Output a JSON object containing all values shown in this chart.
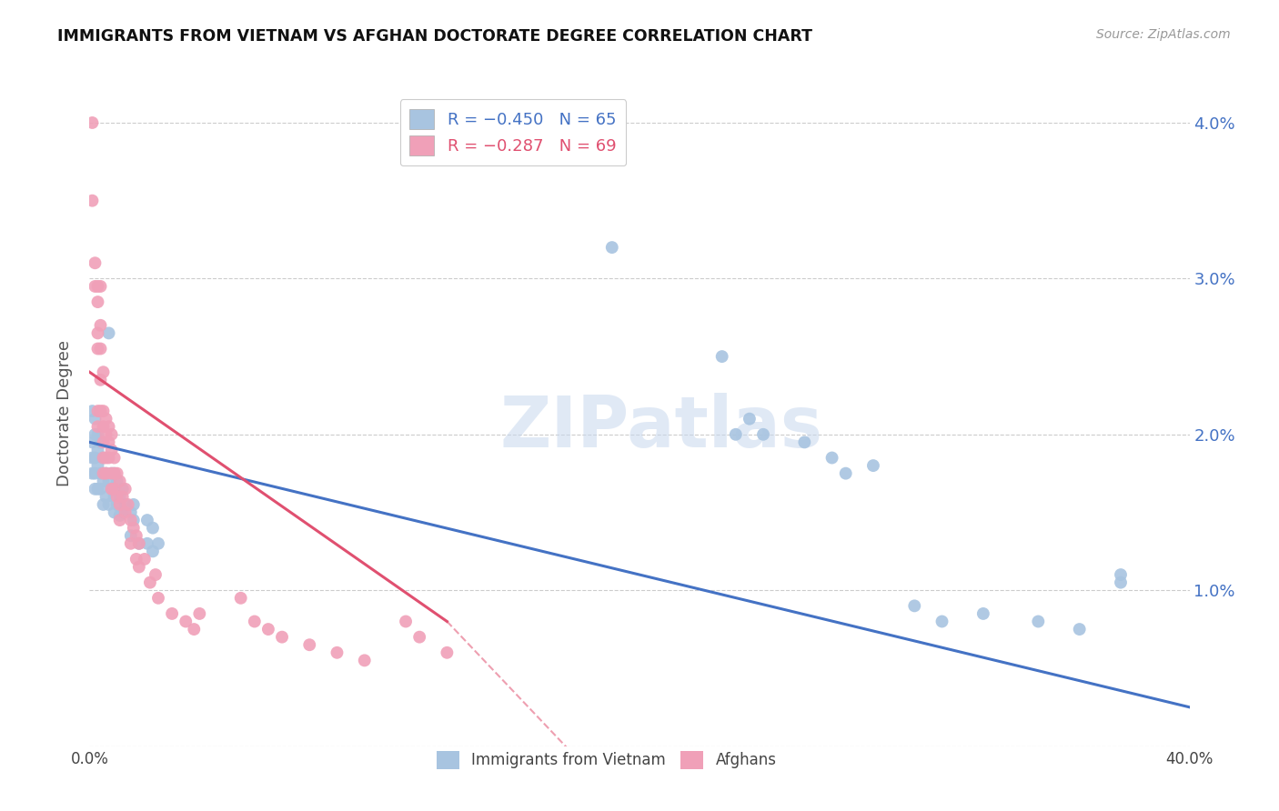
{
  "title": "IMMIGRANTS FROM VIETNAM VS AFGHAN DOCTORATE DEGREE CORRELATION CHART",
  "source": "Source: ZipAtlas.com",
  "ylabel": "Doctorate Degree",
  "xlim": [
    0.0,
    0.4
  ],
  "ylim": [
    0.0,
    0.04267
  ],
  "vietnam_color": "#a8c4e0",
  "afghan_color": "#f0a0b8",
  "trendline_vietnam_color": "#4472c4",
  "trendline_afghan_color": "#e05070",
  "watermark_text": "ZIPatlas",
  "background_color": "#ffffff",
  "grid_color": "#cccccc",
  "vietnam_trendline": [
    0.0,
    0.4,
    0.0195,
    0.0025
  ],
  "afghan_trendline_solid": [
    0.0,
    0.13,
    0.024,
    0.008
  ],
  "afghan_trendline_dash": [
    0.13,
    0.2,
    0.008,
    -0.005
  ],
  "vietnam_points": [
    [
      0.001,
      0.0215
    ],
    [
      0.001,
      0.0195
    ],
    [
      0.001,
      0.0185
    ],
    [
      0.001,
      0.0175
    ],
    [
      0.002,
      0.021
    ],
    [
      0.002,
      0.02
    ],
    [
      0.002,
      0.0185
    ],
    [
      0.002,
      0.0175
    ],
    [
      0.002,
      0.0165
    ],
    [
      0.003,
      0.02
    ],
    [
      0.003,
      0.019
    ],
    [
      0.003,
      0.018
    ],
    [
      0.003,
      0.0165
    ],
    [
      0.004,
      0.0195
    ],
    [
      0.004,
      0.0175
    ],
    [
      0.004,
      0.0165
    ],
    [
      0.005,
      0.0185
    ],
    [
      0.005,
      0.017
    ],
    [
      0.005,
      0.0155
    ],
    [
      0.006,
      0.0175
    ],
    [
      0.006,
      0.016
    ],
    [
      0.007,
      0.0265
    ],
    [
      0.007,
      0.017
    ],
    [
      0.007,
      0.0155
    ],
    [
      0.008,
      0.0175
    ],
    [
      0.008,
      0.0165
    ],
    [
      0.009,
      0.0175
    ],
    [
      0.009,
      0.016
    ],
    [
      0.009,
      0.015
    ],
    [
      0.01,
      0.017
    ],
    [
      0.01,
      0.0155
    ],
    [
      0.011,
      0.016
    ],
    [
      0.011,
      0.0148
    ],
    [
      0.012,
      0.0165
    ],
    [
      0.012,
      0.015
    ],
    [
      0.013,
      0.0155
    ],
    [
      0.015,
      0.015
    ],
    [
      0.015,
      0.0135
    ],
    [
      0.016,
      0.0155
    ],
    [
      0.016,
      0.0145
    ],
    [
      0.018,
      0.013
    ],
    [
      0.021,
      0.0145
    ],
    [
      0.021,
      0.013
    ],
    [
      0.023,
      0.014
    ],
    [
      0.023,
      0.0125
    ],
    [
      0.025,
      0.013
    ],
    [
      0.19,
      0.032
    ],
    [
      0.23,
      0.025
    ],
    [
      0.235,
      0.02
    ],
    [
      0.24,
      0.021
    ],
    [
      0.245,
      0.02
    ],
    [
      0.26,
      0.0195
    ],
    [
      0.27,
      0.0185
    ],
    [
      0.275,
      0.0175
    ],
    [
      0.285,
      0.018
    ],
    [
      0.3,
      0.009
    ],
    [
      0.31,
      0.008
    ],
    [
      0.325,
      0.0085
    ],
    [
      0.345,
      0.008
    ],
    [
      0.36,
      0.0075
    ],
    [
      0.375,
      0.011
    ],
    [
      0.375,
      0.0105
    ]
  ],
  "afghan_points": [
    [
      0.001,
      0.04
    ],
    [
      0.001,
      0.035
    ],
    [
      0.002,
      0.031
    ],
    [
      0.002,
      0.0295
    ],
    [
      0.003,
      0.0295
    ],
    [
      0.003,
      0.0285
    ],
    [
      0.003,
      0.0265
    ],
    [
      0.003,
      0.0255
    ],
    [
      0.003,
      0.0215
    ],
    [
      0.003,
      0.0205
    ],
    [
      0.004,
      0.0295
    ],
    [
      0.004,
      0.027
    ],
    [
      0.004,
      0.0255
    ],
    [
      0.004,
      0.0235
    ],
    [
      0.004,
      0.0215
    ],
    [
      0.005,
      0.024
    ],
    [
      0.005,
      0.0215
    ],
    [
      0.005,
      0.0205
    ],
    [
      0.005,
      0.0195
    ],
    [
      0.005,
      0.0185
    ],
    [
      0.005,
      0.0175
    ],
    [
      0.006,
      0.021
    ],
    [
      0.006,
      0.02
    ],
    [
      0.006,
      0.0185
    ],
    [
      0.006,
      0.0175
    ],
    [
      0.007,
      0.0205
    ],
    [
      0.007,
      0.0195
    ],
    [
      0.007,
      0.0185
    ],
    [
      0.008,
      0.02
    ],
    [
      0.008,
      0.019
    ],
    [
      0.008,
      0.0175
    ],
    [
      0.008,
      0.0165
    ],
    [
      0.009,
      0.0185
    ],
    [
      0.009,
      0.0175
    ],
    [
      0.009,
      0.0165
    ],
    [
      0.01,
      0.0175
    ],
    [
      0.01,
      0.016
    ],
    [
      0.011,
      0.017
    ],
    [
      0.011,
      0.0155
    ],
    [
      0.011,
      0.0145
    ],
    [
      0.012,
      0.016
    ],
    [
      0.013,
      0.0165
    ],
    [
      0.013,
      0.015
    ],
    [
      0.014,
      0.0155
    ],
    [
      0.015,
      0.0145
    ],
    [
      0.015,
      0.013
    ],
    [
      0.016,
      0.014
    ],
    [
      0.017,
      0.0135
    ],
    [
      0.017,
      0.012
    ],
    [
      0.018,
      0.013
    ],
    [
      0.018,
      0.0115
    ],
    [
      0.02,
      0.012
    ],
    [
      0.022,
      0.0105
    ],
    [
      0.024,
      0.011
    ],
    [
      0.025,
      0.0095
    ],
    [
      0.03,
      0.0085
    ],
    [
      0.035,
      0.008
    ],
    [
      0.038,
      0.0075
    ],
    [
      0.04,
      0.0085
    ],
    [
      0.055,
      0.0095
    ],
    [
      0.06,
      0.008
    ],
    [
      0.065,
      0.0075
    ],
    [
      0.07,
      0.007
    ],
    [
      0.08,
      0.0065
    ],
    [
      0.09,
      0.006
    ],
    [
      0.1,
      0.0055
    ],
    [
      0.115,
      0.008
    ],
    [
      0.12,
      0.007
    ],
    [
      0.13,
      0.006
    ]
  ]
}
